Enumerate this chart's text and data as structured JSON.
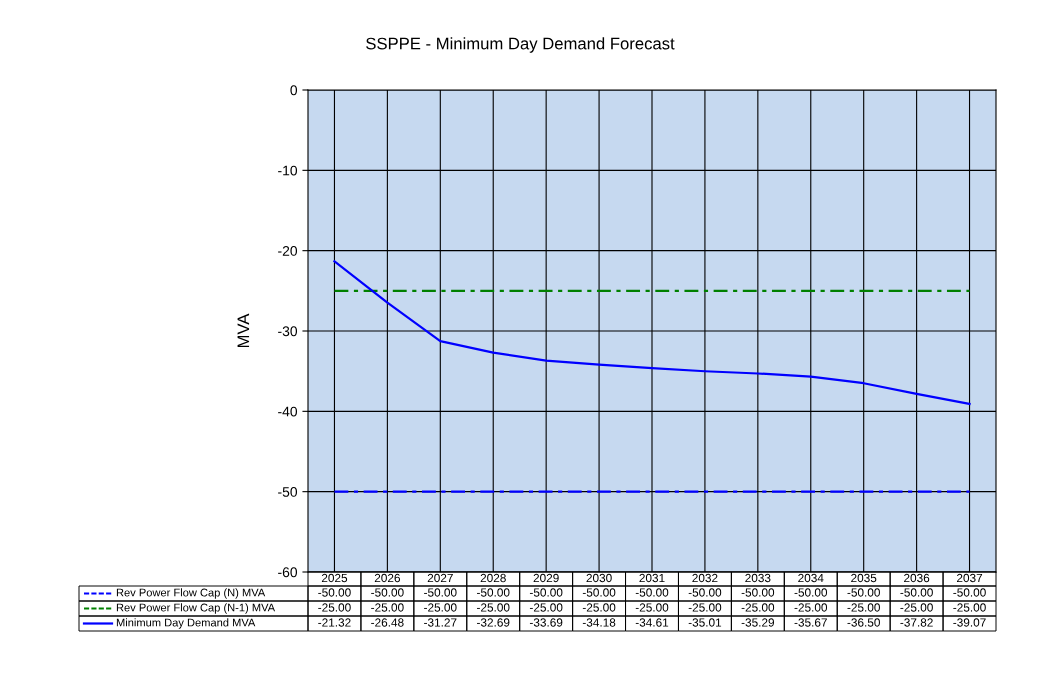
{
  "chart_data": {
    "type": "line",
    "title": "SSPPE - Minimum Day Demand Forecast",
    "ylabel": "MVA",
    "categories": [
      "2025",
      "2026",
      "2027",
      "2028",
      "2029",
      "2030",
      "2031",
      "2032",
      "2033",
      "2034",
      "2035",
      "2036",
      "2037"
    ],
    "series": [
      {
        "name": "Rev Power Flow Cap (N) MVA",
        "color": "#0000ff",
        "line_style": "dashdot",
        "values": [
          -50,
          -50,
          -50,
          -50,
          -50,
          -50,
          -50,
          -50,
          -50,
          -50,
          -50,
          -50,
          -50
        ],
        "value_labels": [
          "-50.00",
          "-50.00",
          "-50.00",
          "-50.00",
          "-50.00",
          "-50.00",
          "-50.00",
          "-50.00",
          "-50.00",
          "-50.00",
          "-50.00",
          "-50.00",
          "-50.00"
        ]
      },
      {
        "name": "Rev Power Flow Cap (N-1) MVA",
        "color": "#008000",
        "line_style": "dashdot",
        "values": [
          -25,
          -25,
          -25,
          -25,
          -25,
          -25,
          -25,
          -25,
          -25,
          -25,
          -25,
          -25,
          -25
        ],
        "value_labels": [
          "-25.00",
          "-25.00",
          "-25.00",
          "-25.00",
          "-25.00",
          "-25.00",
          "-25.00",
          "-25.00",
          "-25.00",
          "-25.00",
          "-25.00",
          "-25.00",
          "-25.00"
        ]
      },
      {
        "name": "Minimum Day Demand MVA",
        "color": "#0000ff",
        "line_style": "solid",
        "values": [
          -21.32,
          -26.48,
          -31.27,
          -32.69,
          -33.69,
          -34.18,
          -34.61,
          -35.01,
          -35.29,
          -35.67,
          -36.5,
          -37.82,
          -39.07
        ],
        "value_labels": [
          "-21.32",
          "-26.48",
          "-31.27",
          "-32.69",
          "-33.69",
          "-34.18",
          "-34.61",
          "-35.01",
          "-35.29",
          "-35.67",
          "-36.50",
          "-37.82",
          "-39.07"
        ]
      }
    ],
    "ylim": [
      -60,
      0
    ],
    "yticks": [
      -60,
      -50,
      -40,
      -30,
      -20,
      -10,
      0
    ],
    "grid": true,
    "legend": "bottom",
    "marker": "none"
  }
}
